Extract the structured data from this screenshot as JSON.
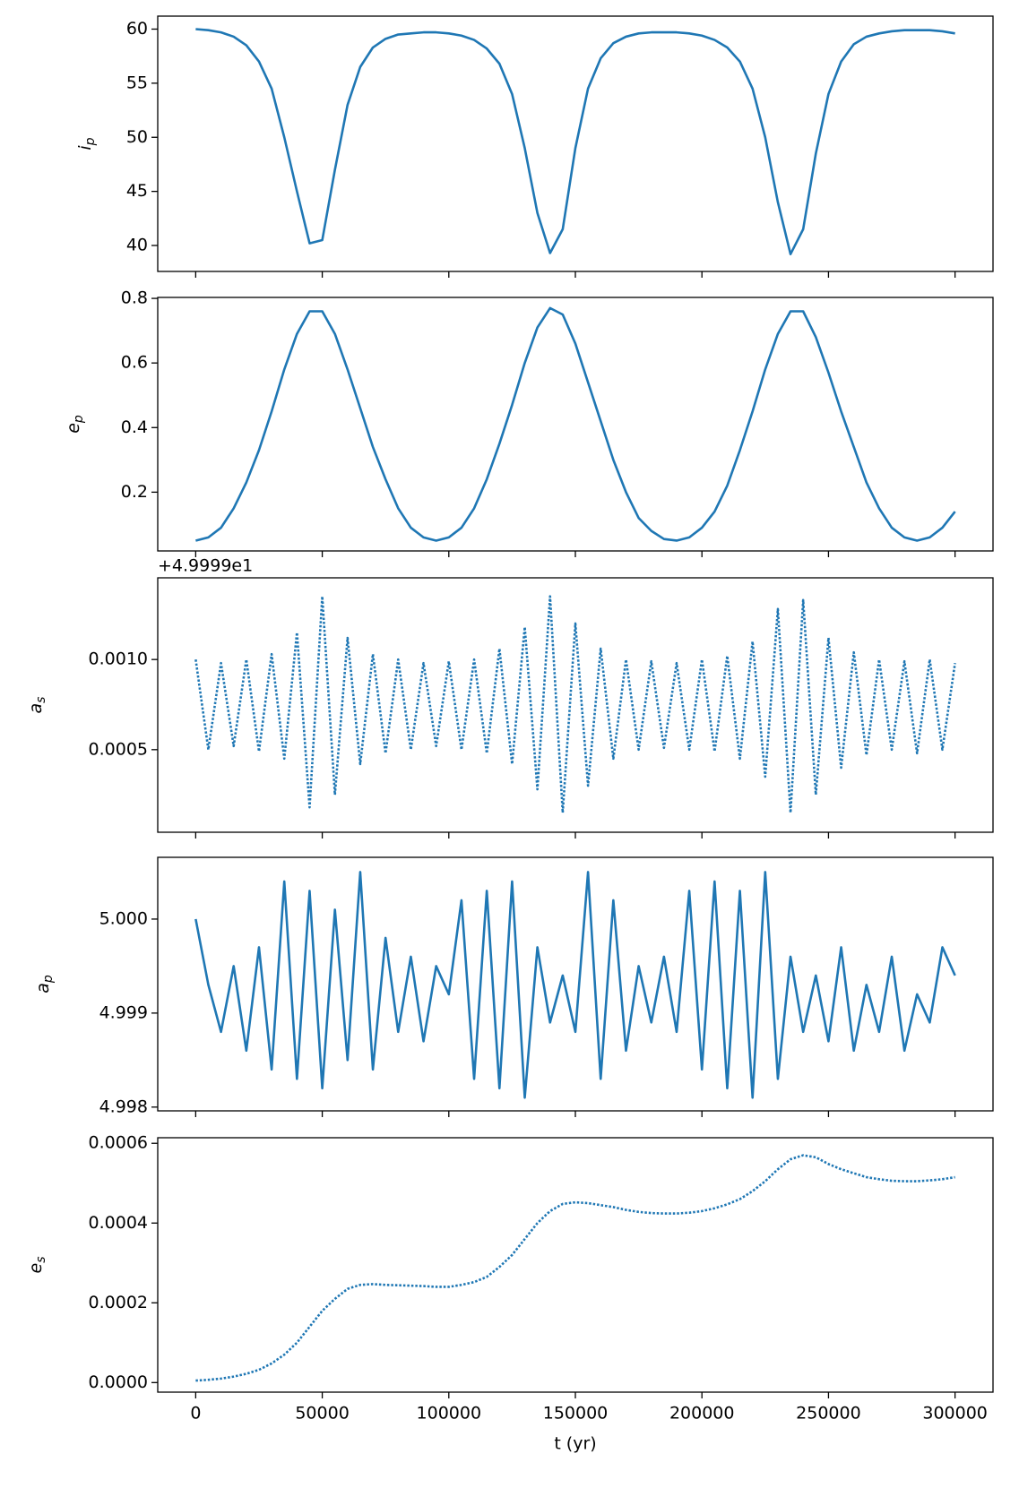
{
  "chart_data": [
    {
      "type": "line",
      "ylabel": [
        "i",
        "p"
      ],
      "x": [
        0,
        5000,
        10000,
        15000,
        20000,
        25000,
        30000,
        35000,
        40000,
        45000,
        50000,
        55000,
        60000,
        65000,
        70000,
        75000,
        80000,
        85000,
        90000,
        95000,
        100000,
        105000,
        110000,
        115000,
        120000,
        125000,
        130000,
        135000,
        140000,
        145000,
        150000,
        155000,
        160000,
        165000,
        170000,
        175000,
        180000,
        185000,
        190000,
        195000,
        200000,
        205000,
        210000,
        215000,
        220000,
        225000,
        230000,
        235000,
        240000,
        245000,
        250000,
        255000,
        260000,
        265000,
        270000,
        275000,
        280000,
        285000,
        290000,
        295000,
        300000
      ],
      "series": [
        {
          "color": "#1f77b4",
          "linestyle": "solid",
          "values": [
            60,
            59.9,
            59.7,
            59.3,
            58.5,
            57,
            54.5,
            50,
            45,
            40.2,
            40.5,
            47,
            53,
            56.5,
            58.3,
            59.1,
            59.5,
            59.6,
            59.7,
            59.7,
            59.6,
            59.4,
            59,
            58.2,
            56.8,
            54,
            49,
            43,
            39.3,
            41.5,
            49,
            54.5,
            57.3,
            58.7,
            59.3,
            59.6,
            59.7,
            59.7,
            59.7,
            59.6,
            59.4,
            59,
            58.3,
            57,
            54.5,
            50,
            44,
            39.2,
            41.5,
            48.5,
            54,
            57,
            58.6,
            59.3,
            59.6,
            59.8,
            59.9,
            59.9,
            59.9,
            59.8,
            59.6
          ]
        }
      ],
      "xlim": [
        -15000,
        315000
      ],
      "xticks": [
        0,
        50000,
        100000,
        150000,
        200000,
        250000,
        300000
      ],
      "show_xtick_labels": false,
      "ylim": [
        37.6,
        61.2
      ],
      "yticks": [
        40,
        45,
        50,
        55,
        60
      ]
    },
    {
      "type": "line",
      "ylabel": [
        "e",
        "p"
      ],
      "x": [
        0,
        5000,
        10000,
        15000,
        20000,
        25000,
        30000,
        35000,
        40000,
        45000,
        50000,
        55000,
        60000,
        65000,
        70000,
        75000,
        80000,
        85000,
        90000,
        95000,
        100000,
        105000,
        110000,
        115000,
        120000,
        125000,
        130000,
        135000,
        140000,
        145000,
        150000,
        155000,
        160000,
        165000,
        170000,
        175000,
        180000,
        185000,
        190000,
        195000,
        200000,
        205000,
        210000,
        215000,
        220000,
        225000,
        230000,
        235000,
        240000,
        245000,
        250000,
        255000,
        260000,
        265000,
        270000,
        275000,
        280000,
        285000,
        290000,
        295000,
        300000
      ],
      "series": [
        {
          "color": "#1f77b4",
          "linestyle": "solid",
          "values": [
            0.05,
            0.06,
            0.09,
            0.15,
            0.23,
            0.33,
            0.45,
            0.58,
            0.69,
            0.76,
            0.76,
            0.69,
            0.58,
            0.46,
            0.34,
            0.24,
            0.15,
            0.09,
            0.06,
            0.05,
            0.06,
            0.09,
            0.15,
            0.24,
            0.35,
            0.47,
            0.6,
            0.71,
            0.77,
            0.75,
            0.66,
            0.54,
            0.42,
            0.3,
            0.2,
            0.12,
            0.08,
            0.055,
            0.05,
            0.06,
            0.09,
            0.14,
            0.22,
            0.33,
            0.45,
            0.58,
            0.69,
            0.76,
            0.76,
            0.68,
            0.57,
            0.45,
            0.34,
            0.23,
            0.15,
            0.09,
            0.06,
            0.05,
            0.06,
            0.09,
            0.14
          ]
        }
      ],
      "xlim": [
        -15000,
        315000
      ],
      "xticks": [
        0,
        50000,
        100000,
        150000,
        200000,
        250000,
        300000
      ],
      "show_xtick_labels": false,
      "ylim": [
        0.018,
        0.803
      ],
      "yticks": [
        0.2,
        0.4,
        0.6,
        0.8
      ]
    },
    {
      "type": "line",
      "ylabel": [
        "a",
        "s"
      ],
      "offset_text": "+4.9999e1",
      "x": [
        0,
        5000,
        10000,
        15000,
        20000,
        25000,
        30000,
        35000,
        40000,
        45000,
        50000,
        55000,
        60000,
        65000,
        70000,
        75000,
        80000,
        85000,
        90000,
        95000,
        100000,
        105000,
        110000,
        115000,
        120000,
        125000,
        130000,
        135000,
        140000,
        145000,
        150000,
        155000,
        160000,
        165000,
        170000,
        175000,
        180000,
        185000,
        190000,
        195000,
        200000,
        205000,
        210000,
        215000,
        220000,
        225000,
        230000,
        235000,
        240000,
        245000,
        250000,
        255000,
        260000,
        265000,
        270000,
        275000,
        280000,
        285000,
        290000,
        295000,
        300000
      ],
      "series": [
        {
          "color": "#1f77b4",
          "linestyle": "dotted",
          "values": [
            0.001,
            0.0005,
            0.00098,
            0.00052,
            0.001,
            0.00049,
            0.00103,
            0.00045,
            0.00115,
            0.00018,
            0.00135,
            0.00025,
            0.00112,
            0.00042,
            0.00103,
            0.00048,
            0.001,
            0.0005,
            0.00098,
            0.00052,
            0.00099,
            0.0005,
            0.001,
            0.00048,
            0.00106,
            0.00042,
            0.00118,
            0.00028,
            0.00135,
            0.00015,
            0.0012,
            0.0003,
            0.00106,
            0.00045,
            0.001,
            0.0005,
            0.00099,
            0.00051,
            0.00098,
            0.0005,
            0.001,
            0.00049,
            0.00102,
            0.00045,
            0.0011,
            0.00035,
            0.00128,
            0.00015,
            0.00133,
            0.00025,
            0.00112,
            0.0004,
            0.00104,
            0.00047,
            0.001,
            0.0005,
            0.00099,
            0.00048,
            0.001,
            0.0005,
            0.00098
          ]
        }
      ],
      "xlim": [
        -15000,
        315000
      ],
      "xticks": [
        0,
        50000,
        100000,
        150000,
        200000,
        250000,
        300000
      ],
      "show_xtick_labels": false,
      "ylim": [
        4.2e-05,
        0.001453
      ],
      "yticks": [
        {
          "value": 0.0005,
          "label": "0.0005"
        },
        {
          "value": 0.001,
          "label": "0.0010"
        }
      ]
    },
    {
      "type": "line",
      "ylabel": [
        "a",
        "p"
      ],
      "x": [
        0,
        5000,
        10000,
        15000,
        20000,
        25000,
        30000,
        35000,
        40000,
        45000,
        50000,
        55000,
        60000,
        65000,
        70000,
        75000,
        80000,
        85000,
        90000,
        95000,
        100000,
        105000,
        110000,
        115000,
        120000,
        125000,
        130000,
        135000,
        140000,
        145000,
        150000,
        155000,
        160000,
        165000,
        170000,
        175000,
        180000,
        185000,
        190000,
        195000,
        200000,
        205000,
        210000,
        215000,
        220000,
        225000,
        230000,
        235000,
        240000,
        245000,
        250000,
        255000,
        260000,
        265000,
        270000,
        275000,
        280000,
        285000,
        290000,
        295000,
        300000
      ],
      "series": [
        {
          "color": "#1f77b4",
          "linestyle": "solid",
          "values": [
            5.0,
            4.9993,
            4.9988,
            4.9995,
            4.9986,
            4.9997,
            4.9984,
            5.0004,
            4.9983,
            5.0003,
            4.9982,
            5.0001,
            4.9985,
            5.0005,
            4.9984,
            4.9998,
            4.9988,
            4.9996,
            4.9987,
            4.9995,
            4.9992,
            5.0002,
            4.9983,
            5.0003,
            4.9982,
            5.0004,
            4.9981,
            4.9997,
            4.9989,
            4.9994,
            4.9988,
            5.0005,
            4.9983,
            5.0002,
            4.9986,
            4.9995,
            4.9989,
            4.9996,
            4.9988,
            5.0003,
            4.9984,
            5.0004,
            4.9982,
            5.0003,
            4.9981,
            5.0005,
            4.9983,
            4.9996,
            4.9988,
            4.9994,
            4.9987,
            4.9997,
            4.9986,
            4.9993,
            4.9988,
            4.9996,
            4.9986,
            4.9992,
            4.9989,
            4.9997,
            4.9994
          ]
        }
      ],
      "xlim": [
        -15000,
        315000
      ],
      "xticks": [
        0,
        50000,
        100000,
        150000,
        200000,
        250000,
        300000
      ],
      "show_xtick_labels": false,
      "ylim": [
        4.99796,
        5.000657
      ],
      "yticks": [
        4.998,
        4.999,
        {
          "value": 5,
          "label": "5.000"
        }
      ]
    },
    {
      "type": "line",
      "ylabel": [
        "e",
        "s"
      ],
      "xlabel": "t (yr)",
      "x": [
        0,
        5000,
        10000,
        15000,
        20000,
        25000,
        30000,
        35000,
        40000,
        45000,
        50000,
        55000,
        60000,
        65000,
        70000,
        75000,
        80000,
        85000,
        90000,
        95000,
        100000,
        105000,
        110000,
        115000,
        120000,
        125000,
        130000,
        135000,
        140000,
        145000,
        150000,
        155000,
        160000,
        165000,
        170000,
        175000,
        180000,
        185000,
        190000,
        195000,
        200000,
        205000,
        210000,
        215000,
        220000,
        225000,
        230000,
        235000,
        240000,
        245000,
        250000,
        255000,
        260000,
        265000,
        270000,
        275000,
        280000,
        285000,
        290000,
        295000,
        300000
      ],
      "series": [
        {
          "color": "#1f77b4",
          "linestyle": "dotted",
          "values": [
            5e-06,
            7e-06,
            1e-05,
            1.5e-05,
            2.2e-05,
            3.2e-05,
            4.8e-05,
            7e-05,
            0.0001,
            0.00014,
            0.00018,
            0.00021,
            0.000235,
            0.000245,
            0.000247,
            0.000245,
            0.000244,
            0.000243,
            0.000242,
            0.00024,
            0.00024,
            0.000245,
            0.000252,
            0.000265,
            0.00029,
            0.00032,
            0.00036,
            0.0004,
            0.00043,
            0.000448,
            0.000452,
            0.00045,
            0.000445,
            0.00044,
            0.000433,
            0.000428,
            0.000425,
            0.000424,
            0.000424,
            0.000426,
            0.00043,
            0.000437,
            0.000447,
            0.00046,
            0.00048,
            0.000505,
            0.000535,
            0.00056,
            0.00057,
            0.000565,
            0.000548,
            0.000535,
            0.000525,
            0.000515,
            0.00051,
            0.000506,
            0.000505,
            0.000505,
            0.000507,
            0.00051,
            0.000515
          ]
        }
      ],
      "xlim": [
        -15000,
        315000
      ],
      "xticks": [
        0,
        50000,
        100000,
        150000,
        200000,
        250000,
        300000
      ],
      "show_xtick_labels": true,
      "ylim": [
        -2.4e-05,
        0.000614
      ],
      "yticks": [
        {
          "value": 0,
          "label": "0.0000"
        },
        0.0002,
        0.0004,
        0.0006
      ]
    }
  ]
}
